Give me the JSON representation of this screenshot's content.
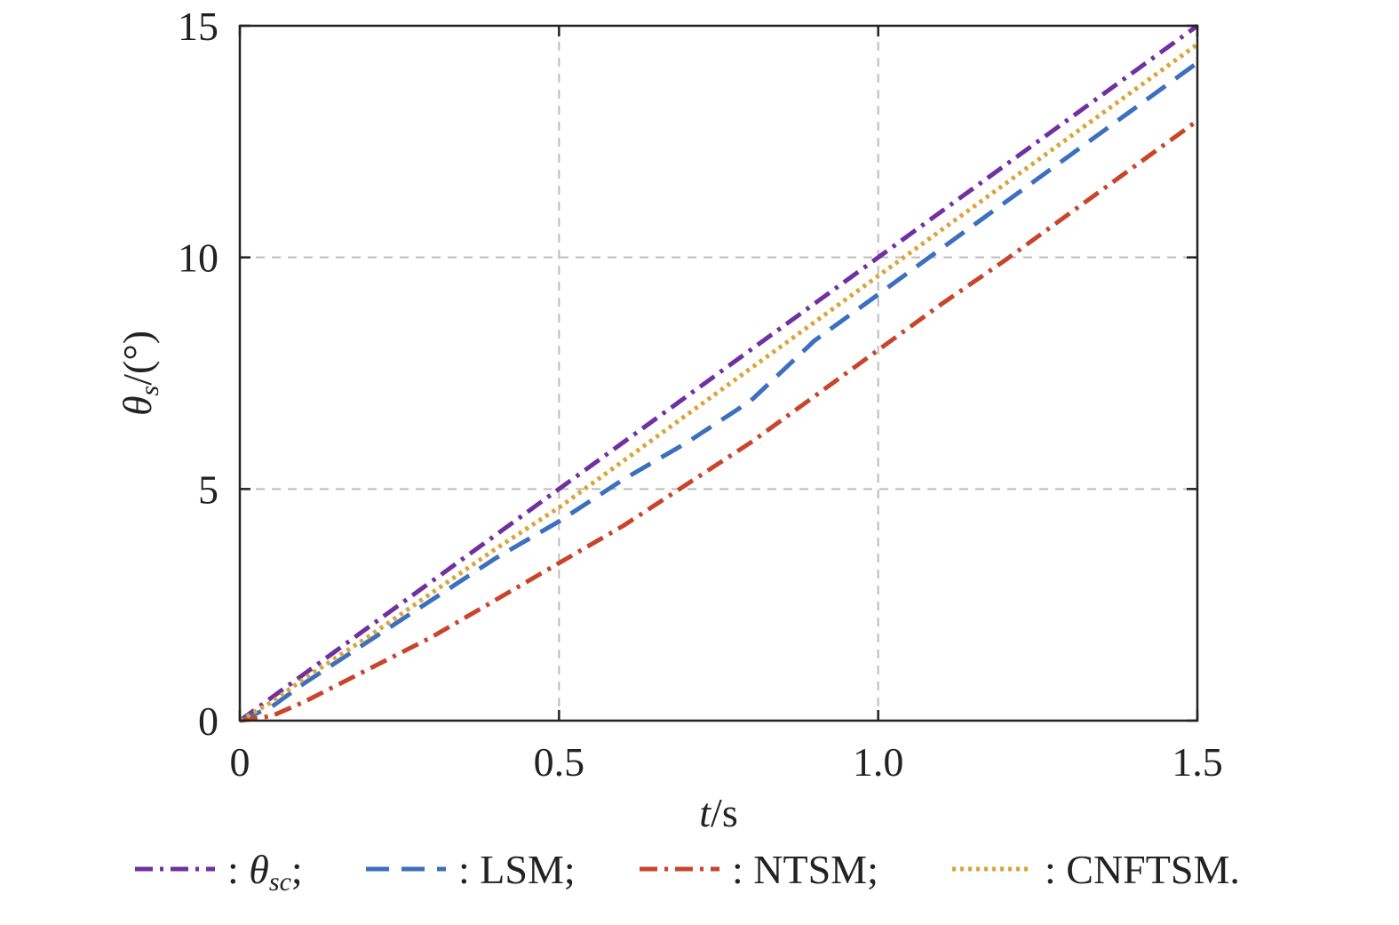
{
  "chart_data": {
    "type": "line",
    "title": "",
    "xlabel": {
      "var": "t",
      "unit": "/s"
    },
    "ylabel": {
      "var": "θ",
      "sub": "s",
      "unit": "/(°)"
    },
    "xlim": [
      0,
      1.5
    ],
    "ylim": [
      0,
      15
    ],
    "xticks": [
      0,
      0.5,
      1.0,
      1.5
    ],
    "xtick_labels": [
      "0",
      "0.5",
      "1.0",
      "1.5"
    ],
    "yticks": [
      0,
      5,
      10,
      15
    ],
    "ytick_labels": [
      "0",
      "5",
      "10",
      "15"
    ],
    "grid": true,
    "legend_position": "bottom",
    "series": [
      {
        "name": "θsc",
        "legend": {
          "prefix": ": ",
          "var": "θ",
          "sub": "sc",
          "suffix": ";"
        },
        "color": "#7030a0",
        "style": "dashdot",
        "x": [
          0,
          0.1,
          0.2,
          0.3,
          0.4,
          0.5,
          0.6,
          0.7,
          0.8,
          0.9,
          1.0,
          1.1,
          1.2,
          1.3,
          1.4,
          1.5
        ],
        "y": [
          0,
          1.0,
          2.0,
          3.0,
          4.0,
          5.0,
          6.0,
          7.0,
          8.0,
          9.0,
          10.0,
          11.0,
          12.0,
          13.0,
          14.0,
          15.0
        ]
      },
      {
        "name": "LSM",
        "legend": {
          "prefix": ": ",
          "var": "",
          "sub": "",
          "suffix": "LSM;"
        },
        "color": "#3c6fbe",
        "style": "dashed",
        "x": [
          0,
          0.05,
          0.1,
          0.2,
          0.3,
          0.4,
          0.5,
          0.6,
          0.7,
          0.8,
          0.9,
          1.0,
          1.1,
          1.2,
          1.3,
          1.4,
          1.5
        ],
        "y": [
          0,
          0.3,
          0.8,
          1.7,
          2.6,
          3.5,
          4.3,
          5.2,
          6.0,
          6.9,
          8.2,
          9.2,
          10.2,
          11.2,
          12.2,
          13.2,
          14.2
        ]
      },
      {
        "name": "NTSM",
        "legend": {
          "prefix": ": ",
          "var": "",
          "sub": "",
          "suffix": "NTSM;"
        },
        "color": "#c8452c",
        "style": "dashdot",
        "x": [
          0,
          0.05,
          0.1,
          0.2,
          0.3,
          0.4,
          0.5,
          0.6,
          0.7,
          0.8,
          0.9,
          1.0,
          1.1,
          1.2,
          1.3,
          1.4,
          1.5
        ],
        "y": [
          0,
          0.1,
          0.4,
          1.1,
          1.8,
          2.6,
          3.4,
          4.2,
          5.1,
          6.0,
          7.0,
          8.0,
          9.0,
          9.95,
          10.95,
          11.95,
          12.95
        ]
      },
      {
        "name": "CNFTSM",
        "legend": {
          "prefix": ": ",
          "var": "",
          "sub": "",
          "suffix": "CNFTSM."
        },
        "color": "#d9a53b",
        "style": "dotted",
        "x": [
          0,
          0.05,
          0.1,
          0.2,
          0.3,
          0.4,
          0.5,
          0.6,
          0.7,
          0.8,
          0.9,
          1.0,
          1.1,
          1.2,
          1.3,
          1.4,
          1.5
        ],
        "y": [
          0,
          0.4,
          0.9,
          1.8,
          2.75,
          3.7,
          4.6,
          5.6,
          6.6,
          7.6,
          8.6,
          9.6,
          10.6,
          11.6,
          12.6,
          13.6,
          14.6
        ]
      }
    ]
  }
}
